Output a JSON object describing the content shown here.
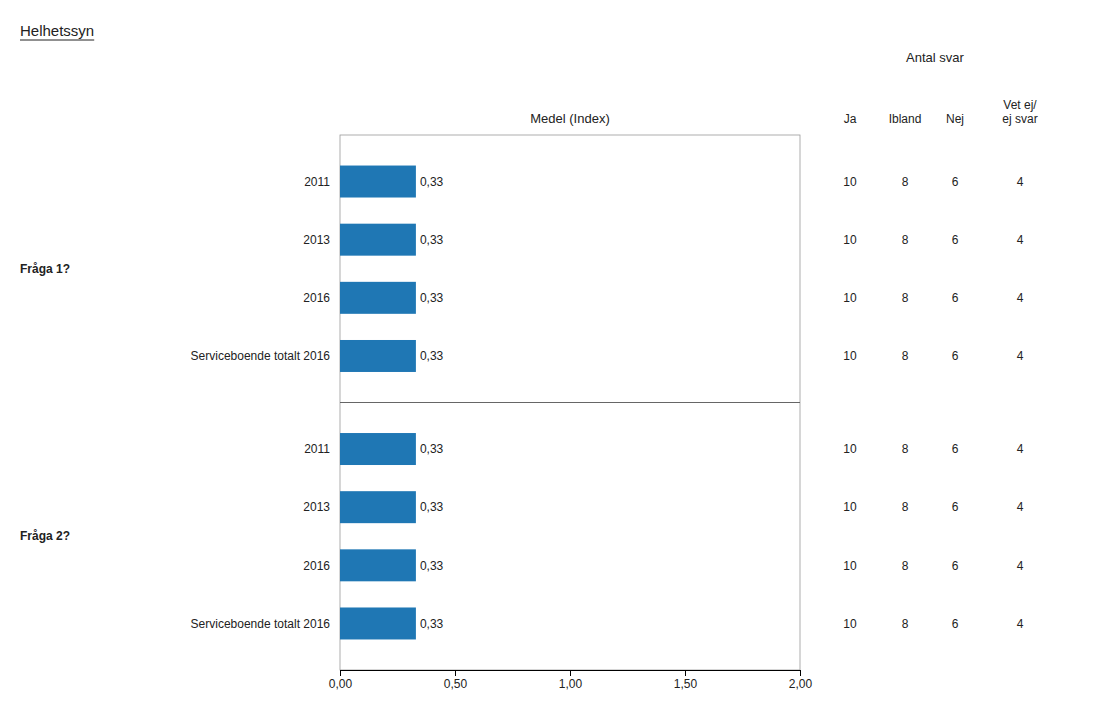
{
  "chart_data": {
    "type": "bar",
    "orientation": "horizontal",
    "title": "Helhetssyn",
    "xlabel": "Medel (Index)",
    "table_title": "Antal svar",
    "columns": [
      "Ja",
      "Ibland",
      "Nej",
      "Vet ej/\nej svar"
    ],
    "data_labels": true,
    "xlim": [
      0.0,
      2.0
    ],
    "xticks": [
      {
        "value": 0.0,
        "label": "0,00"
      },
      {
        "value": 0.5,
        "label": "0,50"
      },
      {
        "value": 1.0,
        "label": "1,00"
      },
      {
        "value": 1.5,
        "label": "1,50"
      },
      {
        "value": 2.0,
        "label": "2,00"
      }
    ],
    "sections": [
      {
        "label": "Fråga 1?",
        "categories": [
          "2011",
          "2013",
          "2016",
          "Serviceboende totalt 2016"
        ],
        "values": [
          0.33,
          0.33,
          0.33,
          0.33
        ],
        "value_labels": [
          "0,33",
          "0,33",
          "0,33",
          "0,33"
        ],
        "counts": [
          [
            10,
            8,
            6,
            4
          ],
          [
            10,
            8,
            6,
            4
          ],
          [
            10,
            8,
            6,
            4
          ],
          [
            10,
            8,
            6,
            4
          ]
        ]
      },
      {
        "label": "Fråga 2?",
        "categories": [
          "2011",
          "2013",
          "2016",
          "Serviceboende totalt 2016"
        ],
        "values": [
          0.33,
          0.33,
          0.33,
          0.33
        ],
        "value_labels": [
          "0,33",
          "0,33",
          "0,33",
          "0,33"
        ],
        "counts": [
          [
            10,
            8,
            6,
            4
          ],
          [
            10,
            8,
            6,
            4
          ],
          [
            10,
            8,
            6,
            4
          ],
          [
            10,
            8,
            6,
            4
          ]
        ]
      }
    ]
  }
}
